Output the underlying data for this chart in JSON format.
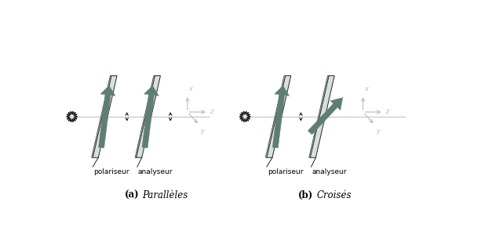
{
  "bg_color": "#ffffff",
  "plate_color_fill": "#d8e0dc",
  "plate_color_edge": "#222222",
  "plate_color_shadow": "#9aada5",
  "arrow_color": "#607d74",
  "axis_color": "#bbbbbb",
  "sunburst_color": "#111111",
  "small_arrow_color": "#111111",
  "label_color": "#111111",
  "label_polariseur": "polariseur",
  "label_analyseur": "analyseur",
  "caption_a_bold": "(a)",
  "caption_a_italic": "Parallèles",
  "caption_b_bold": "(b)",
  "caption_b_italic": "Croisés"
}
